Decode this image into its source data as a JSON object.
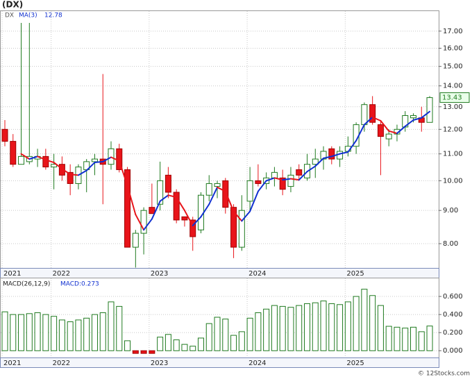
{
  "chart_data": {
    "type": "candlestick",
    "title": "(DX)",
    "symbol": "DX",
    "categories": [
      "2021",
      null,
      null,
      null,
      null,
      null,
      "2022",
      null,
      null,
      null,
      null,
      null,
      null,
      null,
      null,
      null,
      null,
      null,
      "2023",
      null,
      null,
      null,
      null,
      null,
      null,
      null,
      null,
      null,
      null,
      null,
      "2024",
      null,
      null,
      null,
      null,
      null,
      null,
      null,
      null,
      null,
      null,
      null,
      "2025",
      null,
      null,
      null,
      null,
      null,
      null,
      null,
      null,
      null,
      null
    ],
    "open": [
      12.0,
      11.5,
      10.6,
      10.7,
      10.8,
      10.9,
      10.5,
      10.6,
      10.3,
      9.9,
      10.4,
      10.7,
      10.8,
      10.6,
      11.2,
      10.4,
      7.9,
      8.3,
      9.1,
      9.2,
      10.2,
      9.6,
      8.8,
      8.7,
      8.4,
      9.5,
      9.8,
      10.0,
      9.1,
      7.9,
      9.3,
      10.0,
      9.9,
      10.1,
      10.1,
      9.8,
      10.4,
      10.1,
      10.6,
      10.8,
      11.2,
      10.8,
      11.1,
      11.3,
      12.2,
      13.1,
      12.2,
      11.6,
      11.8,
      12.1,
      12.5,
      12.5,
      12.3
    ],
    "high": [
      12.4,
      11.8,
      17.5,
      17.5,
      11.2,
      11.2,
      11.0,
      10.9,
      10.6,
      10.6,
      10.8,
      11.0,
      14.6,
      11.5,
      11.4,
      10.5,
      8.4,
      9.1,
      9.9,
      10.7,
      10.5,
      9.7,
      8.8,
      8.8,
      9.6,
      10.2,
      10.0,
      10.1,
      9.2,
      9.5,
      10.5,
      10.6,
      10.3,
      10.5,
      10.4,
      10.5,
      10.6,
      11.0,
      11.2,
      11.3,
      11.3,
      11.3,
      11.7,
      12.3,
      13.2,
      13.5,
      12.4,
      12.0,
      12.2,
      12.8,
      12.7,
      13.0,
      13.5
    ],
    "low": [
      11.3,
      10.5,
      10.6,
      10.6,
      10.5,
      10.4,
      9.7,
      10.0,
      9.5,
      9.7,
      9.6,
      10.2,
      9.2,
      10.4,
      10.3,
      7.9,
      7.35,
      7.7,
      8.9,
      9.0,
      9.4,
      8.6,
      8.5,
      7.8,
      8.3,
      9.3,
      9.4,
      8.9,
      7.6,
      7.8,
      9.0,
      9.8,
      9.7,
      9.8,
      9.5,
      9.6,
      10.0,
      10.0,
      10.1,
      10.4,
      10.6,
      10.5,
      10.9,
      11.0,
      11.9,
      12.2,
      10.2,
      11.3,
      11.5,
      11.9,
      12.3,
      11.9,
      12.3
    ],
    "close": [
      11.5,
      10.6,
      10.9,
      10.9,
      10.9,
      10.5,
      10.6,
      10.2,
      9.9,
      10.5,
      10.7,
      10.8,
      10.6,
      11.2,
      10.4,
      7.9,
      8.3,
      9.0,
      8.9,
      10.0,
      9.6,
      8.7,
      8.7,
      8.2,
      9.5,
      9.9,
      9.9,
      9.1,
      7.9,
      9.0,
      10.0,
      9.9,
      10.1,
      10.3,
      9.7,
      10.2,
      10.2,
      10.6,
      10.8,
      11.1,
      10.8,
      11.1,
      11.3,
      12.2,
      13.1,
      12.3,
      11.7,
      11.8,
      12.0,
      12.6,
      12.6,
      12.3,
      13.43
    ],
    "up_color": "#1f7a1f",
    "down_color": "#e8141a",
    "ma": {
      "name": "MA(3)",
      "up_color": "#1030d0",
      "down_color": "#e8141a",
      "values": [
        null,
        null,
        11.0,
        10.8,
        10.9,
        10.77,
        10.67,
        10.43,
        10.23,
        10.2,
        10.37,
        10.67,
        10.7,
        10.87,
        10.73,
        9.83,
        8.87,
        8.4,
        8.73,
        9.3,
        9.5,
        9.43,
        9.0,
        8.53,
        8.8,
        9.2,
        9.77,
        9.63,
        8.97,
        8.67,
        8.97,
        9.63,
        10.0,
        10.1,
        10.03,
        10.07,
        10.03,
        10.33,
        10.53,
        10.83,
        10.9,
        11.0,
        11.07,
        11.53,
        12.2,
        12.53,
        12.37,
        11.93,
        11.83,
        12.13,
        12.4,
        12.5,
        12.78
      ]
    },
    "log_scale": true,
    "grid": true,
    "ylim": [
      7.34,
      18.25
    ],
    "yticks": [
      {
        "value": 8,
        "label": "8.00"
      },
      {
        "value": 9,
        "label": "9.00"
      },
      {
        "value": 10,
        "label": "10.00"
      },
      {
        "value": 11,
        "label": "11.00"
      },
      {
        "value": 12,
        "label": "12.00"
      },
      {
        "value": 13,
        "label": "13.00"
      },
      {
        "value": 14,
        "label": "14.00"
      },
      {
        "value": 15,
        "label": "15.00"
      },
      {
        "value": 16,
        "label": "16.00"
      },
      {
        "value": 17,
        "label": "17.00"
      }
    ],
    "macd": {
      "name": "MACD(26,12,9)",
      "value_prefix": "MACD:",
      "up_color": "#1f7a1f",
      "down_color": "#e8141a",
      "values": [
        0.43,
        0.4,
        0.4,
        0.41,
        0.42,
        0.4,
        0.38,
        0.34,
        0.32,
        0.34,
        0.36,
        0.4,
        0.42,
        0.54,
        0.49,
        0.11,
        -0.03,
        -0.03,
        -0.03,
        0.15,
        0.18,
        0.12,
        0.07,
        0.05,
        0.14,
        0.3,
        0.37,
        0.35,
        0.17,
        0.21,
        0.36,
        0.42,
        0.46,
        0.5,
        0.49,
        0.48,
        0.5,
        0.52,
        0.53,
        0.55,
        0.52,
        0.51,
        0.54,
        0.6,
        0.68,
        0.61,
        0.5,
        0.27,
        0.26,
        0.25,
        0.26,
        0.21,
        0.273
      ],
      "ylim": [
        -0.075,
        0.8
      ],
      "yticks": [
        {
          "value": 0,
          "label": "0.000"
        },
        {
          "value": 0.2,
          "label": "0.200"
        },
        {
          "value": 0.4,
          "label": "0.400"
        },
        {
          "value": 0.6,
          "label": "0.600"
        }
      ]
    },
    "credit": "© 12Stocks.com"
  }
}
